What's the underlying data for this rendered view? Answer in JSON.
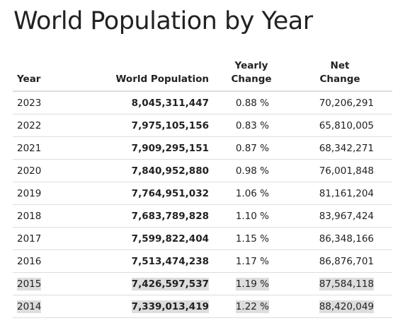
{
  "title": "World Population by Year",
  "table": {
    "headers": {
      "year": "Year",
      "population": "World Population",
      "yearly_change": "Yearly\nChange",
      "net_change": "Net\nChange"
    },
    "rows": [
      {
        "year": "2023",
        "population": "8,045,311,447",
        "yearly_change": "0.88 %",
        "net_change": "70,206,291",
        "highlighted": false
      },
      {
        "year": "2022",
        "population": "7,975,105,156",
        "yearly_change": "0.83 %",
        "net_change": "65,810,005",
        "highlighted": false
      },
      {
        "year": "2021",
        "population": "7,909,295,151",
        "yearly_change": "0.87 %",
        "net_change": "68,342,271",
        "highlighted": false
      },
      {
        "year": "2020",
        "population": "7,840,952,880",
        "yearly_change": "0.98 %",
        "net_change": "76,001,848",
        "highlighted": false
      },
      {
        "year": "2019",
        "population": "7,764,951,032",
        "yearly_change": "1.06 %",
        "net_change": "81,161,204",
        "highlighted": false
      },
      {
        "year": "2018",
        "population": "7,683,789,828",
        "yearly_change": "1.10 %",
        "net_change": "83,967,424",
        "highlighted": false
      },
      {
        "year": "2017",
        "population": "7,599,822,404",
        "yearly_change": "1.15 %",
        "net_change": "86,348,166",
        "highlighted": false
      },
      {
        "year": "2016",
        "population": "7,513,474,238",
        "yearly_change": "1.17 %",
        "net_change": "86,876,701",
        "highlighted": false
      },
      {
        "year": "2015",
        "population": "7,426,597,537",
        "yearly_change": "1.19 %",
        "net_change": "87,584,118",
        "highlighted": true
      },
      {
        "year": "2014",
        "population": "7,339,013,419",
        "yearly_change": "1.22 %",
        "net_change": "88,420,049",
        "highlighted": true
      }
    ]
  },
  "colors": {
    "text": "#222222",
    "border": "#dddddd",
    "highlight": "#dddddd"
  }
}
